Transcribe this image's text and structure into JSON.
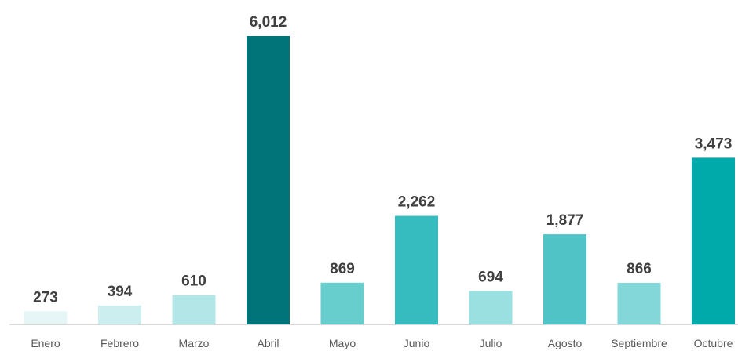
{
  "chart_data": {
    "type": "bar",
    "categories": [
      "Enero",
      "Febrero",
      "Marzo",
      "Abril",
      "Mayo",
      "Junio",
      "Julio",
      "Agosto",
      "Septiembre",
      "Octubre"
    ],
    "values": [
      273,
      394,
      610,
      6012,
      869,
      2262,
      694,
      1877,
      866,
      3473
    ],
    "value_labels": [
      "273",
      "394",
      "610",
      "6,012",
      "869",
      "2,262",
      "694",
      "1,877",
      "866",
      "3,473"
    ],
    "colors": [
      "#e6f6f6",
      "#cdeeee",
      "#b3e6e6",
      "#007478",
      "#67cdcd",
      "#36bcbf",
      "#9be0e1",
      "#50c3c6",
      "#83d7d8",
      "#00a9aa"
    ],
    "title": "",
    "xlabel": "",
    "ylabel": "",
    "ylim": [
      0,
      6400
    ],
    "grid": false,
    "legend": "none",
    "axis_color": "#d9d9d9"
  }
}
